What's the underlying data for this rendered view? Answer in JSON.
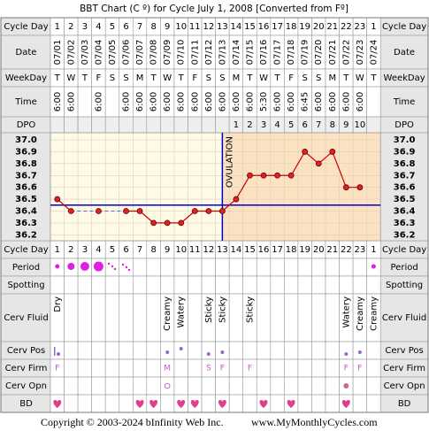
{
  "chart_data": {
    "type": "line",
    "title": "BBT Chart (C º) for Cycle July 1, 2008  [Converted from Fº]",
    "top_rows": [
      "Cycle Day",
      "Date",
      "WeekDay",
      "Time",
      "DPO"
    ],
    "bottom_rows": [
      "Cycle Day",
      "Period",
      "Spotting",
      "Cerv Fluid",
      "Cerv Pos",
      "Cerv Firm",
      "Cerv Opn",
      "BD"
    ],
    "categories": [
      1,
      2,
      3,
      4,
      5,
      6,
      7,
      8,
      9,
      10,
      11,
      12,
      13,
      14,
      15,
      16,
      17,
      18,
      19,
      20,
      21,
      22,
      23,
      1
    ],
    "dates": [
      "07/01",
      "07/02",
      "07/03",
      "07/04",
      "07/05",
      "07/06",
      "07/07",
      "07/08",
      "07/09",
      "07/10",
      "07/11",
      "07/12",
      "07/13",
      "07/14",
      "07/15",
      "07/16",
      "07/17",
      "07/18",
      "07/19",
      "07/20",
      "07/21",
      "07/22",
      "07/23",
      "07/24"
    ],
    "weekdays": [
      "T",
      "W",
      "T",
      "F",
      "S",
      "S",
      "M",
      "T",
      "W",
      "T",
      "F",
      "S",
      "S",
      "M",
      "T",
      "W",
      "T",
      "F",
      "S",
      "S",
      "M",
      "T",
      "W",
      "T"
    ],
    "times": [
      "6:00",
      "6:00",
      null,
      "6:00",
      null,
      "6:00",
      "6:00",
      "6:00",
      "6:00",
      "6:00",
      "6:00",
      "6:00",
      "6:00",
      "6:00",
      "6:00",
      "5:30",
      "6:00",
      "6:00",
      "6:45",
      "6:00",
      "6:00",
      "6:00",
      "6:00",
      null
    ],
    "dpo": [
      null,
      null,
      null,
      null,
      null,
      null,
      null,
      null,
      null,
      null,
      null,
      null,
      null,
      1,
      2,
      3,
      4,
      5,
      6,
      7,
      8,
      9,
      10,
      null
    ],
    "values": [
      36.5,
      36.4,
      null,
      36.4,
      null,
      36.4,
      36.4,
      36.3,
      36.3,
      36.3,
      36.4,
      36.4,
      36.4,
      36.5,
      36.7,
      36.7,
      36.7,
      36.7,
      36.9,
      36.8,
      36.9,
      36.6,
      36.6,
      null
    ],
    "color": "#cc0000",
    "ylim": [
      36.15,
      37.06
    ],
    "yticks": [
      {
        "value": 37,
        "label": "37.0"
      },
      36.9,
      36.8,
      36.7,
      36.6,
      36.5,
      36.4,
      36.3,
      36.2
    ],
    "grid": true,
    "coverline": 36.45,
    "coverline_color": "#0000cc",
    "ovulation_index": 12,
    "ovulation_label": "OVULATION",
    "cervical_fluid": [
      "Dry",
      null,
      null,
      null,
      null,
      null,
      null,
      null,
      "Creamy",
      "Watery",
      null,
      "Sticky",
      "Sticky",
      null,
      "Sticky",
      null,
      null,
      null,
      null,
      null,
      null,
      "Watery",
      "Creamy",
      "Creamy"
    ],
    "cervical_firmness": [
      "F",
      null,
      null,
      null,
      null,
      null,
      null,
      null,
      "M",
      null,
      null,
      "S",
      "F",
      null,
      "F",
      null,
      null,
      null,
      null,
      null,
      null,
      "F",
      "F",
      null
    ],
    "footer_left": "Copyright © 2003-2024 bInfinity Web Inc.",
    "footer_right": "www.MyMonthlyCycles.com"
  }
}
